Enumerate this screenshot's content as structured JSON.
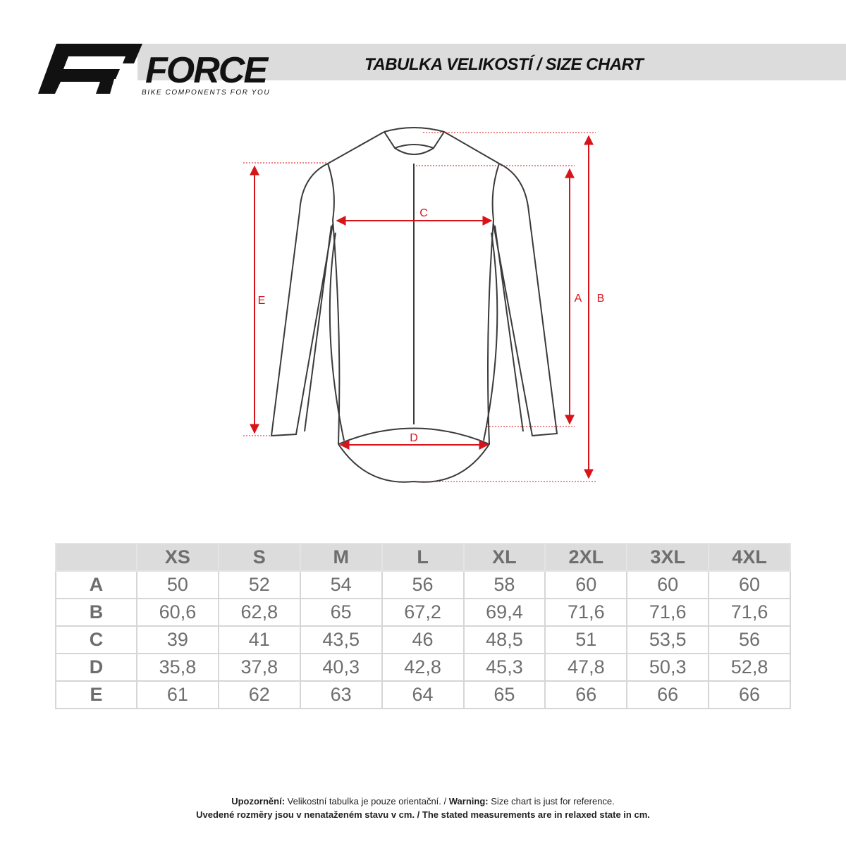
{
  "brand": {
    "name": "FORCE",
    "tagline": "BIKE COMPONENTS FOR YOU"
  },
  "header": {
    "title": "TABULKA VELIKOSTÍ / SIZE CHART"
  },
  "diagram": {
    "labels": {
      "a": "A",
      "b": "B",
      "c": "C",
      "d": "D",
      "e": "E"
    },
    "measure_color": "#d7141a",
    "outline_color": "#3a3a3a"
  },
  "table": {
    "columns": [
      "",
      "XS",
      "S",
      "M",
      "L",
      "XL",
      "2XL",
      "3XL",
      "4XL"
    ],
    "rows": [
      {
        "label": "A",
        "values": [
          "50",
          "52",
          "54",
          "56",
          "58",
          "60",
          "60",
          "60"
        ]
      },
      {
        "label": "B",
        "values": [
          "60,6",
          "62,8",
          "65",
          "67,2",
          "69,4",
          "71,6",
          "71,6",
          "71,6"
        ]
      },
      {
        "label": "C",
        "values": [
          "39",
          "41",
          "43,5",
          "46",
          "48,5",
          "51",
          "53,5",
          "56"
        ]
      },
      {
        "label": "D",
        "values": [
          "35,8",
          "37,8",
          "40,3",
          "42,8",
          "45,3",
          "47,8",
          "50,3",
          "52,8"
        ]
      },
      {
        "label": "E",
        "values": [
          "61",
          "62",
          "63",
          "64",
          "65",
          "66",
          "66",
          "66"
        ]
      }
    ]
  },
  "footer": {
    "line1_bold1": "Upozornění:",
    "line1_text1": " Velikostní tabulka je pouze orientační. / ",
    "line1_bold2": "Warning:",
    "line1_text2": " Size chart is just for reference.",
    "line2": "Uvedené rozměry jsou v nenataženém stavu v cm. / The stated measurements are in relaxed state in cm."
  }
}
